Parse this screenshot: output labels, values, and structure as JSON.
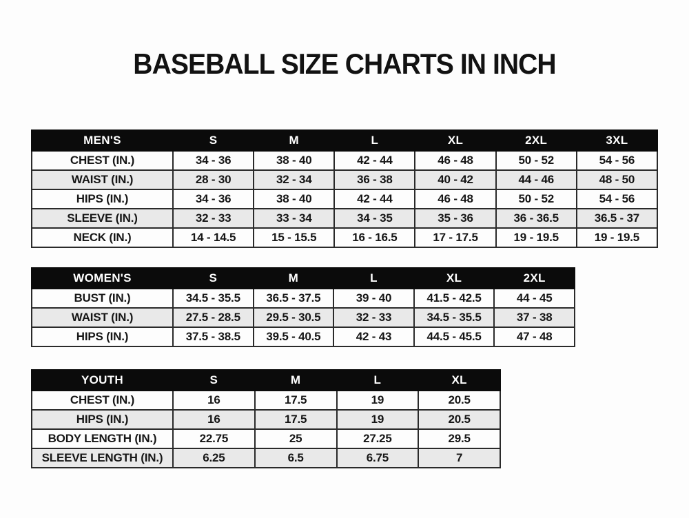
{
  "page": {
    "title": "BASEBALL SIZE CHARTS IN INCH"
  },
  "colors": {
    "header_bg": "#0b0b0b",
    "header_text": "#ffffff",
    "row_alt_bg": "#e9e9e9",
    "border": "#2a2a2a",
    "text": "#161616",
    "background": "#fdfdfd"
  },
  "tables": [
    {
      "id": "mens",
      "header_label": "MEN'S",
      "columns": [
        "S",
        "M",
        "L",
        "XL",
        "2XL",
        "3XL"
      ],
      "rows": [
        {
          "label": "CHEST (IN.)",
          "values": [
            "34 - 36",
            "38 - 40",
            "42 - 44",
            "46 - 48",
            "50 - 52",
            "54 - 56"
          ]
        },
        {
          "label": "WAIST (IN.)",
          "values": [
            "28 - 30",
            "32 - 34",
            "36 - 38",
            "40 - 42",
            "44 - 46",
            "48 - 50"
          ]
        },
        {
          "label": "HIPS (IN.)",
          "values": [
            "34 - 36",
            "38 - 40",
            "42 - 44",
            "46 - 48",
            "50 - 52",
            "54 - 56"
          ]
        },
        {
          "label": "SLEEVE (IN.)",
          "values": [
            "32 - 33",
            "33 - 34",
            "34 - 35",
            "35 - 36",
            "36 - 36.5",
            "36.5 - 37"
          ]
        },
        {
          "label": "NECK (IN.)",
          "values": [
            "14 - 14.5",
            "15 - 15.5",
            "16 - 16.5",
            "17 - 17.5",
            "19 - 19.5",
            "19 - 19.5"
          ]
        }
      ]
    },
    {
      "id": "womens",
      "header_label": "WOMEN'S",
      "columns": [
        "S",
        "M",
        "L",
        "XL",
        "2XL"
      ],
      "rows": [
        {
          "label": "BUST (IN.)",
          "values": [
            "34.5 - 35.5",
            "36.5 - 37.5",
            "39 - 40",
            "41.5 - 42.5",
            "44 - 45"
          ]
        },
        {
          "label": "WAIST (IN.)",
          "values": [
            "27.5 - 28.5",
            "29.5 - 30.5",
            "32 - 33",
            "34.5 - 35.5",
            "37 - 38"
          ]
        },
        {
          "label": "HIPS (IN.)",
          "values": [
            "37.5 - 38.5",
            "39.5 - 40.5",
            "42 - 43",
            "44.5 - 45.5",
            "47 - 48"
          ]
        }
      ]
    },
    {
      "id": "youth",
      "header_label": "YOUTH",
      "columns": [
        "S",
        "M",
        "L",
        "XL"
      ],
      "rows": [
        {
          "label": "CHEST (IN.)",
          "values": [
            "16",
            "17.5",
            "19",
            "20.5"
          ]
        },
        {
          "label": "HIPS (IN.)",
          "values": [
            "16",
            "17.5",
            "19",
            "20.5"
          ]
        },
        {
          "label": "BODY LENGTH (IN.)",
          "values": [
            "22.75",
            "25",
            "27.25",
            "29.5"
          ]
        },
        {
          "label": "SLEEVE LENGTH (IN.)",
          "values": [
            "6.25",
            "6.5",
            "6.75",
            "7"
          ]
        }
      ]
    }
  ]
}
